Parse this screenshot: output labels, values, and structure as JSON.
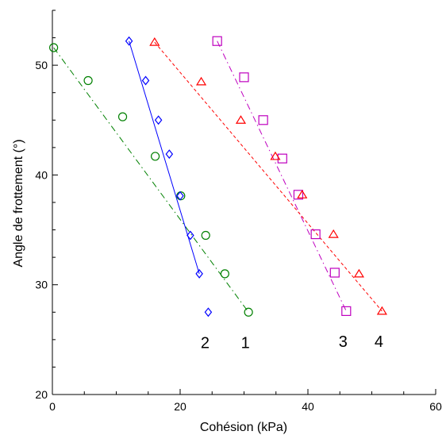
{
  "chart_data": {
    "type": "scatter",
    "title": "",
    "xlabel": "Cohésion (kPa)",
    "ylabel": "Angle de frottement (°)",
    "xlim": [
      0,
      60
    ],
    "ylim": [
      20,
      55
    ],
    "x_ticks": [
      0,
      20,
      40,
      60
    ],
    "y_ticks": [
      20,
      30,
      40,
      50
    ],
    "grid": false,
    "legend": "none",
    "series": [
      {
        "tag": "1",
        "color": "#008000",
        "marker": "circle",
        "line": "dashdot",
        "points": [
          [
            0.2,
            51.6
          ],
          [
            5.6,
            48.6
          ],
          [
            11.0,
            45.3
          ],
          [
            16.1,
            41.7
          ],
          [
            20.1,
            38.1
          ],
          [
            24.0,
            34.5
          ],
          [
            27.0,
            31.0
          ],
          [
            30.7,
            27.5
          ]
        ],
        "fit": [
          [
            0.2,
            51.6
          ],
          [
            30.7,
            27.5
          ]
        ]
      },
      {
        "tag": "2",
        "color": "#0000ff",
        "marker": "diamond",
        "line": "solid",
        "points": [
          [
            12.0,
            52.2
          ],
          [
            14.6,
            48.6
          ],
          [
            16.6,
            45.0
          ],
          [
            18.3,
            41.9
          ],
          [
            20.0,
            38.1
          ],
          [
            21.6,
            34.5
          ],
          [
            23.0,
            31.0
          ],
          [
            24.4,
            27.5
          ]
        ],
        "fit": [
          [
            12.0,
            52.2
          ],
          [
            23.0,
            31.0
          ]
        ]
      },
      {
        "tag": "3",
        "color": "#bf00bf",
        "marker": "square",
        "line": "dashdot",
        "points": [
          [
            25.8,
            52.2
          ],
          [
            30.0,
            48.9
          ],
          [
            33.0,
            45.0
          ],
          [
            36.0,
            41.5
          ],
          [
            38.5,
            38.2
          ],
          [
            41.2,
            34.6
          ],
          [
            44.2,
            31.1
          ],
          [
            46.0,
            27.6
          ]
        ],
        "fit": [
          [
            25.8,
            52.2
          ],
          [
            46.0,
            27.6
          ]
        ]
      },
      {
        "tag": "4",
        "color": "#ff0000",
        "marker": "triangle",
        "line": "dashed",
        "points": [
          [
            16.0,
            52.1
          ],
          [
            23.3,
            48.5
          ],
          [
            29.5,
            45.0
          ],
          [
            34.9,
            41.7
          ],
          [
            39.1,
            38.2
          ],
          [
            44.0,
            34.6
          ],
          [
            48.0,
            31.0
          ],
          [
            51.6,
            27.6
          ]
        ],
        "fit": [
          [
            16.0,
            52.1
          ],
          [
            51.6,
            27.6
          ]
        ]
      }
    ]
  }
}
